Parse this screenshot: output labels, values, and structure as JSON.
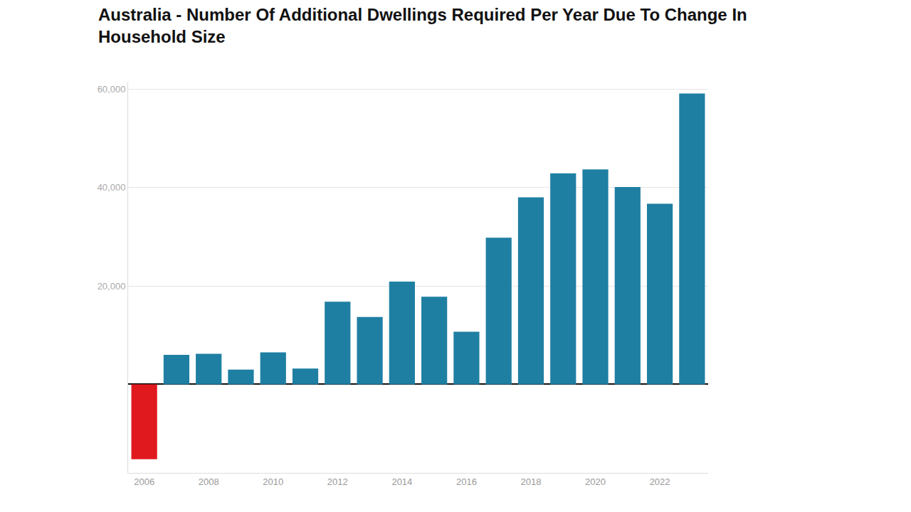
{
  "chart_data": {
    "type": "bar",
    "title": "Australia - Number Of Additional Dwellings Required Per Year Due To Change In Household Size",
    "x": [
      2006,
      2007,
      2008,
      2009,
      2010,
      2011,
      2012,
      2013,
      2014,
      2015,
      2016,
      2017,
      2018,
      2019,
      2020,
      2021,
      2022,
      2023
    ],
    "values": [
      -15200,
      6000,
      6200,
      3000,
      6500,
      3200,
      16800,
      13700,
      20900,
      17800,
      10700,
      29800,
      38000,
      42900,
      43700,
      40100,
      36700,
      59100
    ],
    "colors": [
      "#e0191f",
      "#1f7fa3",
      "#1f7fa3",
      "#1f7fa3",
      "#1f7fa3",
      "#1f7fa3",
      "#1f7fa3",
      "#1f7fa3",
      "#1f7fa3",
      "#1f7fa3",
      "#1f7fa3",
      "#1f7fa3",
      "#1f7fa3",
      "#1f7fa3",
      "#1f7fa3",
      "#1f7fa3",
      "#1f7fa3",
      "#1f7fa3"
    ],
    "xlim": [
      2005.5,
      2023.5
    ],
    "xticks": [
      2006,
      2008,
      2010,
      2012,
      2014,
      2016,
      2018,
      2020,
      2022
    ],
    "ylim": [
      -18000,
      61500
    ],
    "yticks": [
      {
        "value": 20000,
        "label": "20,000"
      },
      {
        "value": 40000,
        "label": "40,000"
      },
      {
        "value": 60000,
        "label": "60,000"
      }
    ],
    "grid": true
  }
}
